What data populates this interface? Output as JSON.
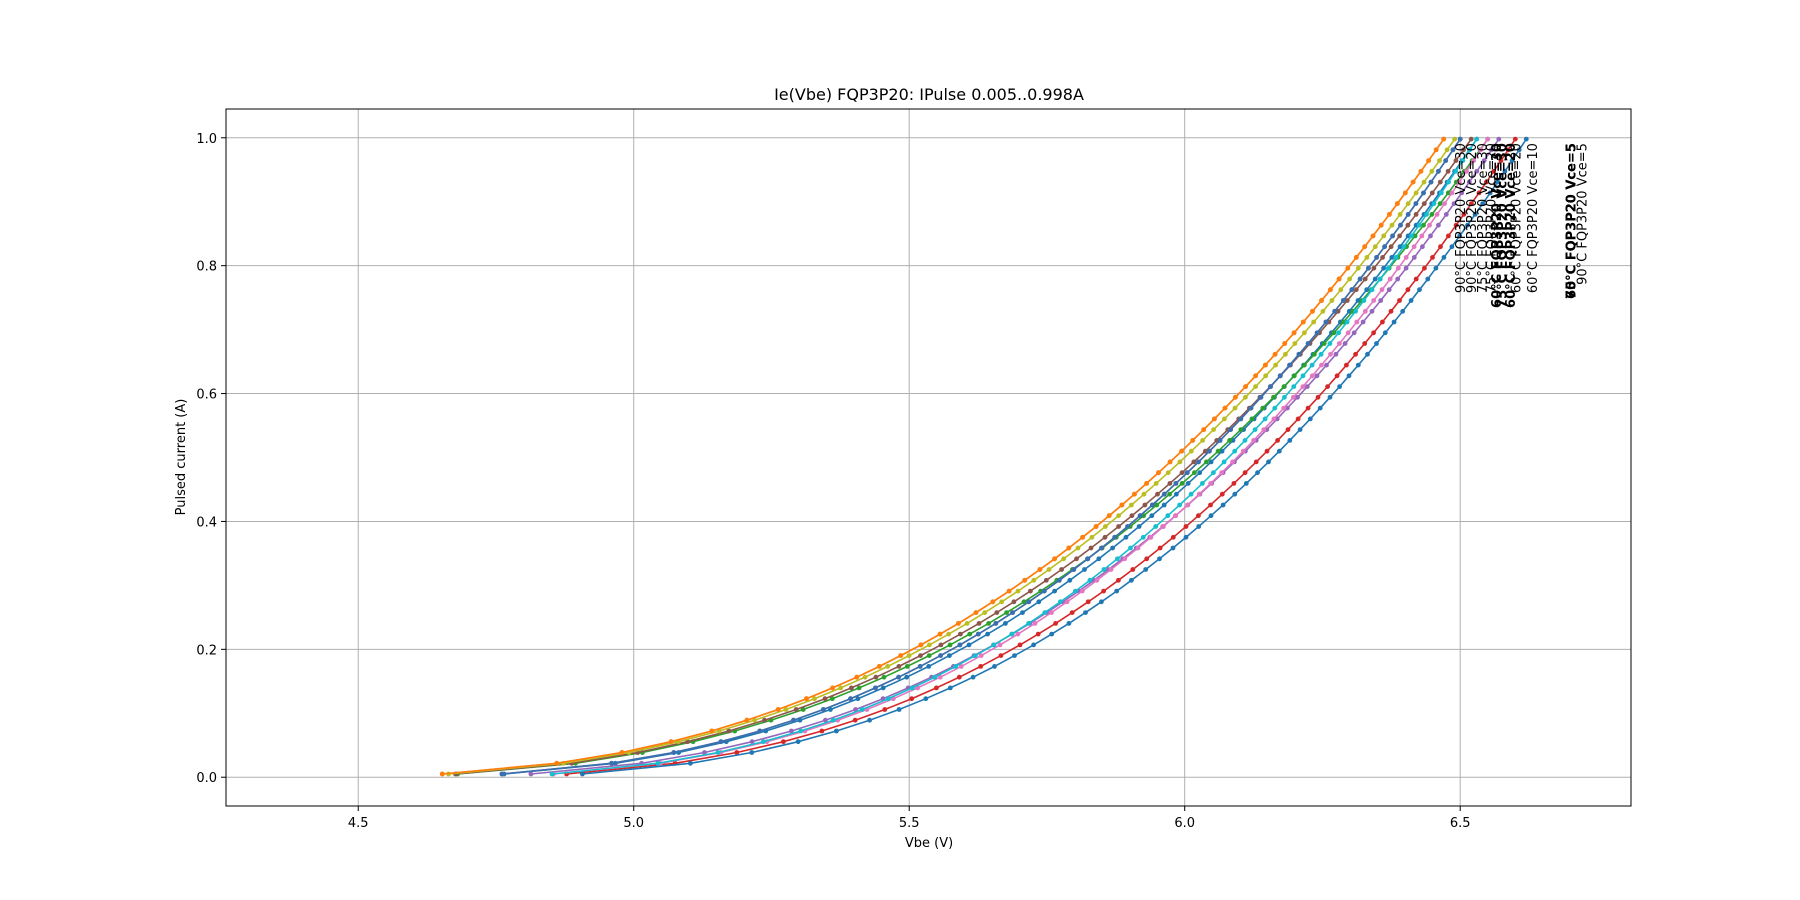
{
  "chart_data": {
    "type": "line",
    "title": "Ie(Vbe) FQP3P20: IPulse 0.005..0.998A",
    "xlabel": "Vbe (V)",
    "ylabel": "Pulsed current (A)",
    "xlim": [
      4.26,
      6.81
    ],
    "ylim": [
      -0.045,
      1.045
    ],
    "x_ticks": [
      "4.5",
      "5.0",
      "5.5",
      "6.0",
      "6.5"
    ],
    "x_tick_values": [
      4.5,
      5.0,
      5.5,
      6.0,
      6.5
    ],
    "y_ticks": [
      "0.0",
      "0.2",
      "0.4",
      "0.6",
      "0.8",
      "1.0"
    ],
    "y_tick_values": [
      0.0,
      0.2,
      0.4,
      0.6,
      0.8,
      1.0
    ],
    "grid": true,
    "curve_model": "I = 0.998 * ((Vbe - v0) / (v1 - v0))^2.6, sampled at 60 pulse levels from 0.005 A to 0.998 A",
    "series": [
      {
        "name": "",
        "v0": 4.5,
        "v1": 6.53,
        "color": "#1f77b4"
      },
      {
        "name": "",
        "v0": 4.38,
        "v1": 6.47,
        "color": "#ff7f0e"
      },
      {
        "name": "",
        "v0": 4.4,
        "v1": 6.55,
        "color": "#2ca02c"
      },
      {
        "name": "",
        "v0": 4.62,
        "v1": 6.6,
        "color": "#d62728"
      },
      {
        "name": "",
        "v0": 4.55,
        "v1": 6.57,
        "color": "#9467bd"
      },
      {
        "name": "",
        "v0": 4.4,
        "v1": 6.52,
        "color": "#8c564b"
      },
      {
        "name": "",
        "v0": 4.6,
        "v1": 6.55,
        "color": "#e377c2"
      },
      {
        "name": "",
        "v0": 4.5,
        "v1": 6.5,
        "color": "#7f7f7f"
      },
      {
        "name": "",
        "v0": 4.39,
        "v1": 6.49,
        "color": "#bcbd22"
      },
      {
        "name": "",
        "v0": 4.6,
        "v1": 6.53,
        "color": "#17becf"
      },
      {
        "name": "",
        "v0": 4.65,
        "v1": 6.62,
        "color": "#1f77b4"
      },
      {
        "name": "",
        "v0": 4.38,
        "v1": 6.47,
        "color": "#ff7f0e"
      },
      {
        "name": "",
        "v0": 4.5,
        "v1": 6.5,
        "color": "#3a6fb0"
      }
    ],
    "annotations": [
      {
        "text": "90°C FQP3P20 Vce=30",
        "x": 6.5,
        "bold": false
      },
      {
        "text": "90°C FQP3P20 Vce=20",
        "x": 6.52,
        "bold": false
      },
      {
        "text": "75°C FQP3P20 Vce=30",
        "x": 6.54,
        "bold": false
      },
      {
        "text": "75°C FQP3P20 Vce=20",
        "x": 6.555,
        "bold": false
      },
      {
        "text": "60°C FQP3P20 Vce=30",
        "x": 6.565,
        "bold": true
      },
      {
        "text": "75°C FQP3P20 Vce=30",
        "x": 6.575,
        "bold": true
      },
      {
        "text": "60°C FQP3P20 Vce=20",
        "x": 6.59,
        "bold": true
      },
      {
        "text": "60°C FQP3P20 Vce=20",
        "x": 6.6,
        "bold": false
      },
      {
        "text": "60°C FQP3P20 Vce=10",
        "x": 6.63,
        "bold": false
      },
      {
        "text": "60°C FQP3P20 Vce=5",
        "x": 6.7,
        "bold": true
      },
      {
        "text": "75°C FQP3P20 Vce=5",
        "x": 6.7,
        "bold": true
      },
      {
        "text": "90°C FQP3P20 Vce=5",
        "x": 6.72,
        "bold": false
      }
    ]
  }
}
